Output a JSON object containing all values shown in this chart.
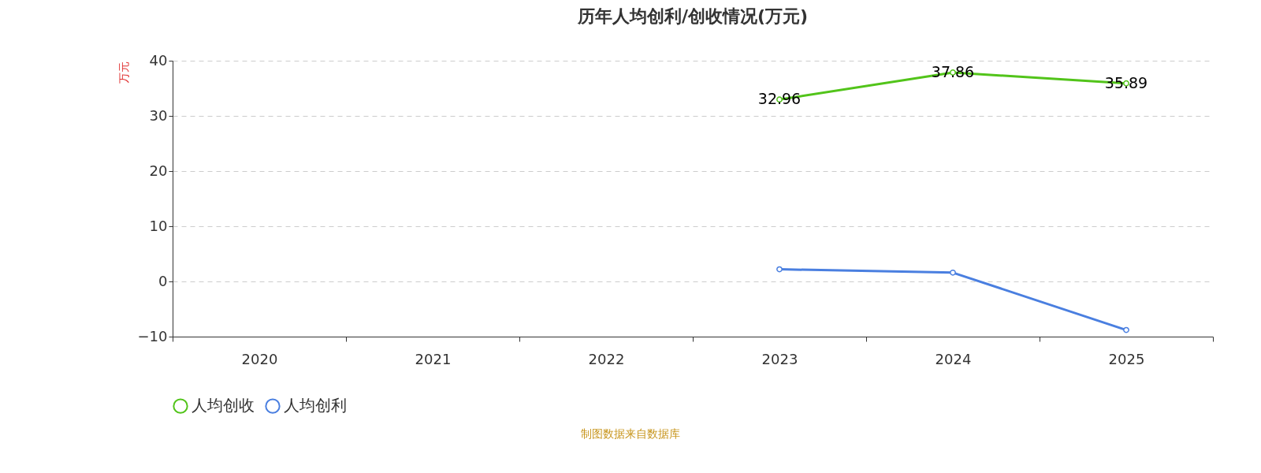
{
  "chart_data": {
    "type": "line",
    "title": "历年人均创利/创收情况(万元)",
    "ylabel": "万元",
    "categories": [
      "2020",
      "2021",
      "2022",
      "2023",
      "2024",
      "2025"
    ],
    "series": [
      {
        "name": "人均创收",
        "color": "#52c41a",
        "values": [
          null,
          null,
          null,
          32.96,
          37.86,
          35.89
        ],
        "value_labels": [
          null,
          null,
          null,
          "32.96",
          "37.86",
          "35.89"
        ]
      },
      {
        "name": "人均创利",
        "color": "#4a7fe0",
        "values": [
          null,
          null,
          null,
          2.2,
          1.6,
          -8.8
        ]
      }
    ],
    "ylim": [
      -10,
      40
    ],
    "yticks": [
      -10,
      0,
      10,
      20,
      30,
      40
    ],
    "grid": "y",
    "legend": "bottom",
    "marker": "circle",
    "line_style": "solid",
    "annotations": [
      "制图数据来自数据库"
    ]
  }
}
